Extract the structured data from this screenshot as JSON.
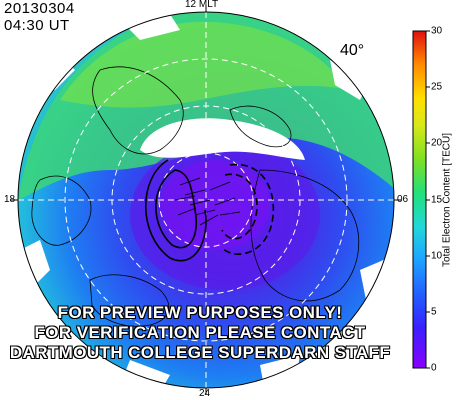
{
  "header": {
    "date": "20130304",
    "time": "04:30 UT"
  },
  "map": {
    "mlt_labels": {
      "top": "12 MLT",
      "left": "18",
      "right": "06",
      "bottom": "24"
    },
    "lat_label": "40°",
    "colors": {
      "ocean_low": "#4020e0",
      "land_line": "#000000",
      "grid_line": "#ffffff"
    },
    "icon": "polar-convection-map"
  },
  "colorbar": {
    "title": "Total Electron Content [TECU]",
    "ticks": [
      "0",
      "5",
      "10",
      "15",
      "20",
      "25",
      "30"
    ],
    "min": 0,
    "max": 30,
    "colors": [
      "#8a00ff",
      "#2f3cff",
      "#1e90ff",
      "#22d8d8",
      "#22e07a",
      "#9be022",
      "#ffe000",
      "#ff8c00",
      "#e01010"
    ]
  },
  "watermark": {
    "line1": "FOR PREVIEW PURPOSES ONLY!",
    "line2": "FOR VERIFICATION PLEASE CONTACT",
    "line3": "DARTMOUTH COLLEGE SUPERDARN STAFF"
  }
}
